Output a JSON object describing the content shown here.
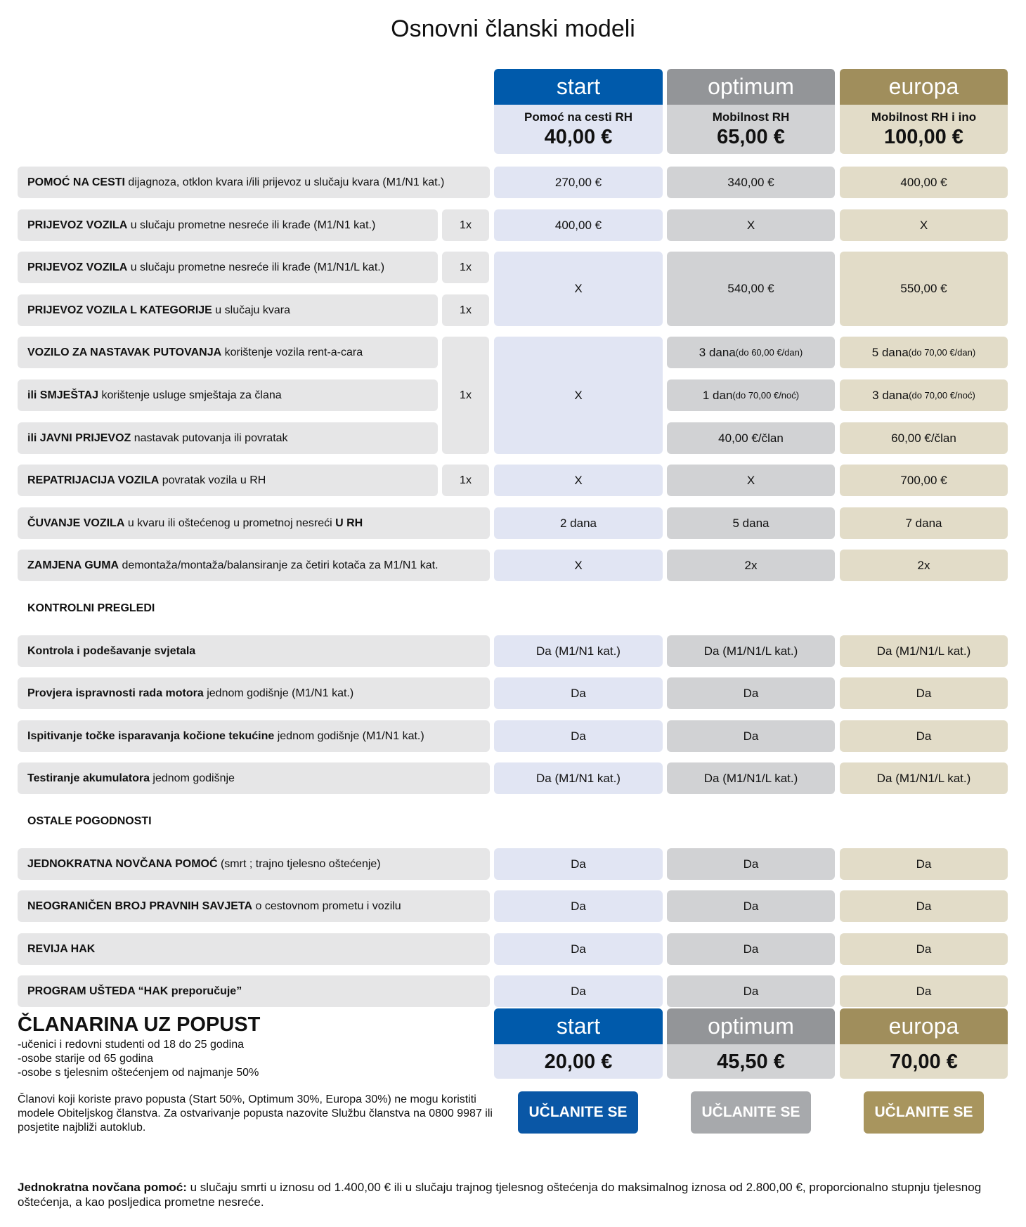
{
  "title": "Osnovni članski modeli",
  "colors": {
    "start": "#005aab",
    "optimum": "#939598",
    "europa": "#a08e5c"
  },
  "plans": [
    {
      "name": "start",
      "subtitle": "Pomoć na cesti RH",
      "price": "40,00 €",
      "discount_price": "20,00 €",
      "button": "UČLANITE SE"
    },
    {
      "name": "optimum",
      "subtitle": "Mobilnost RH",
      "price": "65,00 €",
      "discount_price": "45,50 €",
      "button": "UČLANITE SE"
    },
    {
      "name": "europa",
      "subtitle": "Mobilnost RH i ino",
      "price": "100,00 €",
      "discount_price": "70,00 €",
      "button": "UČLANITE SE"
    }
  ],
  "rows": [
    {
      "bold": "POMOĆ NA CESTI",
      "text": " dijagnoza, otklon kvara i/ili prijevoz u slučaju kvara (M1/N1 kat.)",
      "values": [
        "270,00 €",
        "340,00 €",
        "400,00 €"
      ]
    },
    {
      "bold": "PRIJEVOZ VOZILA",
      "text": " u slučaju prometne nesreće ili krađe (M1/N1 kat.)",
      "times": "1x",
      "values": [
        "400,00 €",
        "X",
        "X"
      ]
    },
    {
      "bold": "PRIJEVOZ VOZILA",
      "text": " u slučaju prometne nesreće ili krađe (M1/N1/L kat.)",
      "times": "1x",
      "values": [
        "X",
        "540,00 €",
        "550,00 €"
      ]
    },
    {
      "bold": "PRIJEVOZ VOZILA L KATEGORIJE",
      "text": " u slučaju kvara",
      "times": "1x"
    },
    {
      "bold": "VOZILO ZA NASTAVAK PUTOVANJA",
      "text": " korištenje vozila rent-a-cara",
      "times": "1x",
      "values": [
        "X",
        {
          "main": "3 dana",
          "note": "(do 60,00 €/dan)"
        },
        {
          "main": "5 dana",
          "note": "(do 70,00 €/dan)"
        }
      ]
    },
    {
      "bold": "ili SMJEŠTAJ",
      "text": " korištenje usluge smještaja za člana",
      "values": [
        null,
        {
          "main": "1 dan",
          "note": "(do 70,00 €/noć)"
        },
        {
          "main": "3 dana",
          "note": "(do 70,00 €/noć)"
        }
      ]
    },
    {
      "bold": "ili JAVNI PRIJEVOZ",
      "text": " nastavak putovanja ili povratak",
      "values": [
        null,
        "40,00 €/član",
        "60,00 €/član"
      ]
    },
    {
      "bold": "REPATRIJACIJA VOZILA",
      "text": " povratak vozila u RH",
      "times": "1x",
      "values": [
        "X",
        "X",
        "700,00 €"
      ]
    },
    {
      "bold": "ČUVANJE VOZILA",
      "text": " u kvaru ili oštećenog u prometnoj nesreći ",
      "bold_end": "U RH",
      "values": [
        "2 dana",
        "5 dana",
        "7 dana"
      ]
    },
    {
      "bold": "ZAMJENA GUMA",
      "text": " demontaža/montaža/balansiranje za četiri kotača za M1/N1 kat.",
      "values": [
        "X",
        "2x",
        "2x"
      ]
    },
    {
      "section": "KONTROLNI PREGLEDI"
    },
    {
      "bold": "Kontrola i podešavanje svjetala",
      "text": "",
      "values": [
        "Da (M1/N1 kat.)",
        "Da (M1/N1/L kat.)",
        "Da (M1/N1/L kat.)"
      ]
    },
    {
      "bold": "Provjera ispravnosti rada motora",
      "text": " jednom godišnje (M1/N1 kat.)",
      "values": [
        "Da",
        "Da",
        "Da"
      ]
    },
    {
      "bold": "Ispitivanje točke isparavanja kočione tekućine",
      "text": " jednom godišnje (M1/N1 kat.)",
      "values": [
        "Da",
        "Da",
        "Da"
      ]
    },
    {
      "bold": "Testiranje akumulatora",
      "text": " jednom godišnje",
      "values": [
        "Da (M1/N1 kat.)",
        "Da (M1/N1/L kat.)",
        "Da (M1/N1/L kat.)"
      ]
    },
    {
      "section": "OSTALE POGODNOSTI"
    },
    {
      "bold": "JEDNOKRATNA NOVČANA POMOĆ",
      "text": " (smrt ; trajno tjelesno oštećenje)",
      "values": [
        "Da",
        "Da",
        "Da"
      ]
    },
    {
      "bold": "NEOGRANIČEN BROJ PRAVNIH SAVJETA",
      "text": " o cestovnom prometu i vozilu",
      "values": [
        "Da",
        "Da",
        "Da"
      ]
    },
    {
      "bold": "REVIJA HAK",
      "text": "",
      "values": [
        "Da",
        "Da",
        "Da"
      ]
    },
    {
      "bold": "PROGRAM UŠTEDA “HAK preporučuje”",
      "text": "",
      "values": [
        "Da",
        "Da",
        "Da"
      ]
    }
  ],
  "discount": {
    "title": "ČLANARINA UZ POPUST",
    "conditions": [
      "-učenici i redovni studenti od 18 do 25 godina",
      "-osobe starije od 65 godina",
      "-osobe s tjelesnim oštećenjem od najmanje 50%"
    ],
    "note": "Članovi koji koriste pravo popusta (Start 50%, Optimum 30%, Europa 30%) ne mogu koristiti modele Obiteljskog članstva. Za ostvarivanje popusta nazovite Službu članstva na 0800 9987 ili posjetite najbliži autoklub."
  },
  "footnote": {
    "bold": "Jednokratna novčana pomoć:",
    "text": " u slučaju smrti u iznosu od 1.400,00 € ili u slučaju trajnog tjelesnog oštećenja do maksimalnog iznosa od 2.800,00 €, proporcionalno stupnju tjelesnog oštećenja, a kao posljedica prometne nesreće."
  }
}
